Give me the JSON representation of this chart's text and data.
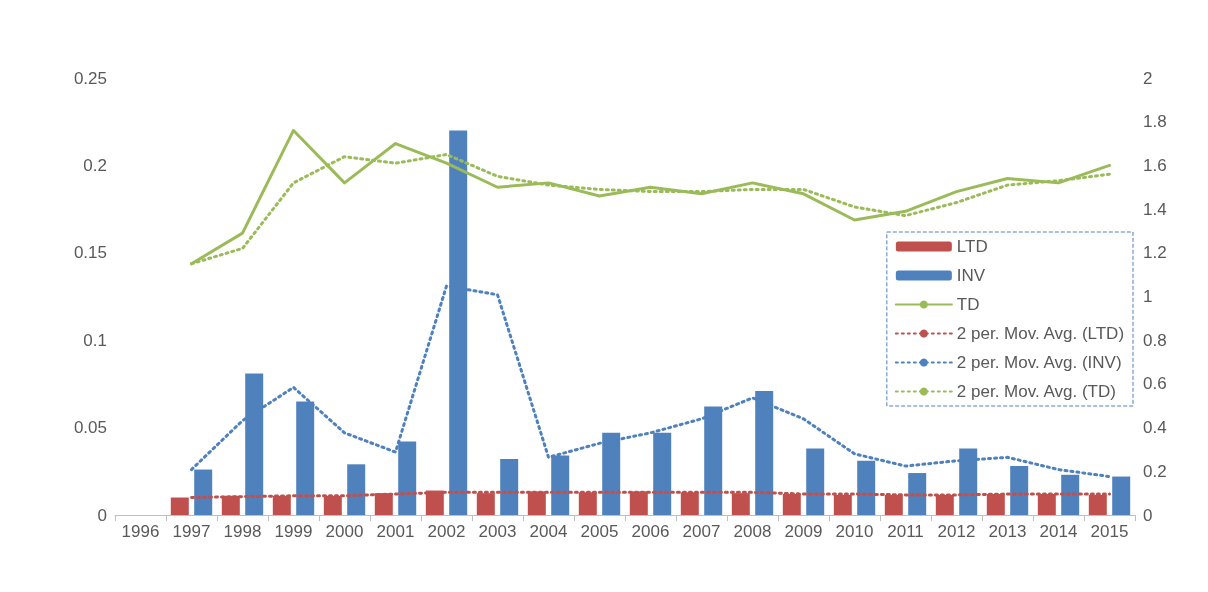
{
  "chart_data": {
    "type": "bar",
    "categories": [
      "1996",
      "1997",
      "1998",
      "1999",
      "2000",
      "2001",
      "2002",
      "2003",
      "2004",
      "2005",
      "2006",
      "2007",
      "2008",
      "2009",
      "2010",
      "2011",
      "2012",
      "2013",
      "2014",
      "2015"
    ],
    "series": [
      {
        "name": "LTD",
        "color": "#c0504d",
        "values": [
          null,
          0.01,
          0.011,
          0.011,
          0.011,
          0.0125,
          0.014,
          0.0125,
          0.0135,
          0.013,
          0.0135,
          0.013,
          0.0125,
          0.012,
          0.0115,
          0.0115,
          0.0115,
          0.012,
          0.012,
          0.0115
        ]
      },
      {
        "name": "INV",
        "color": "#4f81bd",
        "values": [
          null,
          0.026,
          0.081,
          0.065,
          0.029,
          0.042,
          0.22,
          0.032,
          0.034,
          0.047,
          0.047,
          0.062,
          0.071,
          0.038,
          0.031,
          0.024,
          0.038,
          0.028,
          0.023,
          0.022
        ]
      },
      {
        "name": "TD",
        "type": "line",
        "axis": "y2",
        "color": "#9bbb59",
        "line_style": "solid",
        "values": [
          null,
          1.15,
          1.29,
          1.76,
          1.52,
          1.7,
          1.61,
          1.5,
          1.52,
          1.46,
          1.5,
          1.47,
          1.52,
          1.47,
          1.35,
          1.39,
          1.48,
          1.54,
          1.52,
          1.6
        ]
      },
      {
        "name": "2 per. Mov. Avg. (LTD)",
        "type": "line",
        "color": "#c0504d",
        "line_style": "dotted",
        "values": [
          null,
          0.01,
          0.0105,
          0.011,
          0.011,
          0.012,
          0.013,
          0.013,
          0.013,
          0.013,
          0.013,
          0.013,
          0.013,
          0.012,
          0.012,
          0.0115,
          0.0115,
          0.012,
          0.012,
          0.012
        ]
      },
      {
        "name": "2 per. Mov. Avg. (INV)",
        "type": "line",
        "color": "#4f81bd",
        "line_style": "dotted",
        "values": [
          null,
          0.026,
          0.054,
          0.073,
          0.047,
          0.036,
          0.131,
          0.126,
          0.033,
          0.041,
          0.047,
          0.055,
          0.067,
          0.055,
          0.035,
          0.028,
          0.031,
          0.033,
          0.026,
          0.022
        ]
      },
      {
        "name": "2 per. Mov. Avg. (TD)",
        "type": "line",
        "axis": "y2",
        "color": "#9bbb59",
        "line_style": "dotted",
        "values": [
          null,
          1.15,
          1.22,
          1.52,
          1.64,
          1.61,
          1.65,
          1.55,
          1.51,
          1.49,
          1.48,
          1.48,
          1.49,
          1.49,
          1.41,
          1.37,
          1.43,
          1.51,
          1.53,
          1.56
        ]
      }
    ],
    "ylim": [
      0,
      0.25
    ],
    "yticks": [
      0,
      0.05,
      0.1,
      0.15,
      0.2,
      0.25
    ],
    "y2lim": [
      0,
      2
    ],
    "y2ticks": [
      0,
      0.2,
      0.4,
      0.6,
      0.8,
      1,
      1.2,
      1.4,
      1.6,
      1.8,
      2
    ],
    "legend": "right",
    "marker": "none",
    "grid": false
  }
}
